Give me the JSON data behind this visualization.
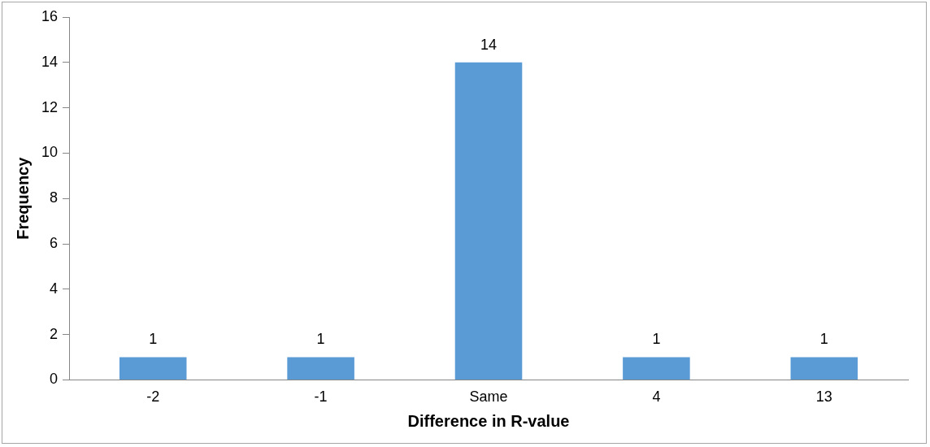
{
  "chart_data": {
    "type": "bar",
    "xlabel": "Difference in R-value",
    "ylabel": "Frequency",
    "categories": [
      "-2",
      "-1",
      "Same",
      "4",
      "13"
    ],
    "values": [
      1,
      1,
      14,
      1,
      1
    ],
    "color": "#5b9bd5",
    "ylim": [
      0,
      16
    ],
    "yticks": [
      0,
      2,
      4,
      6,
      8,
      10,
      12,
      14,
      16
    ],
    "grid": false,
    "legend": false,
    "data_labels": true
  }
}
